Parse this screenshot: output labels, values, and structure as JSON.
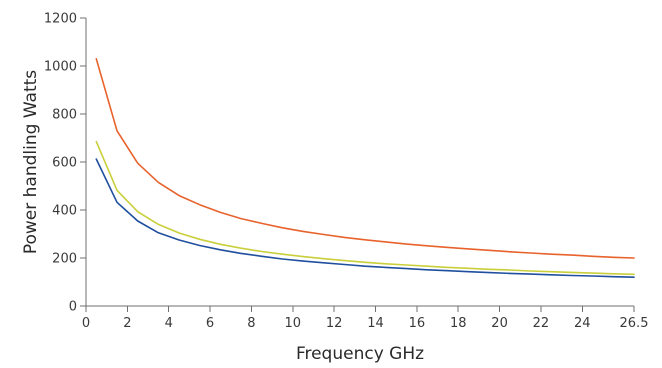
{
  "chart_data": {
    "type": "line",
    "title": "",
    "xlabel": "Frequency GHz",
    "ylabel": "Power handling Watts",
    "xlim": [
      0,
      26.5
    ],
    "ylim": [
      0,
      1200
    ],
    "x_ticks": [
      0,
      2,
      4,
      6,
      8,
      10,
      12,
      14,
      16,
      18,
      20,
      22,
      24,
      26.5
    ],
    "x_tick_labels": [
      "0",
      "2",
      "4",
      "6",
      "8",
      "10",
      "12",
      "14",
      "16",
      "18",
      "20",
      "22",
      "24",
      "26.5"
    ],
    "y_ticks": [
      0,
      200,
      400,
      600,
      800,
      1000,
      1200
    ],
    "y_tick_labels": [
      "0",
      "200",
      "400",
      "600",
      "800",
      "1000",
      "1200"
    ],
    "grid": false,
    "legend": "none",
    "series": [
      {
        "color": "#e8622c",
        "x": [
          0.5,
          1.5,
          2.5,
          3.5,
          4.5,
          5.5,
          6.5,
          7.5,
          8.5,
          9.5,
          10.5,
          11.5,
          12.5,
          13.5,
          14.5,
          15.5,
          16.5,
          17.5,
          18.5,
          19.5,
          20.5,
          21.5,
          22.5,
          23.5,
          24.5,
          25.5,
          26.5
        ],
        "values": [
          1030,
          730,
          595,
          515,
          460,
          422,
          390,
          364,
          344,
          326,
          311,
          298,
          286,
          276,
          267,
          258,
          251,
          244,
          238,
          232,
          226,
          221,
          216,
          212,
          207,
          203,
          200
        ]
      },
      {
        "color": "#c9cf3a",
        "x": [
          0.5,
          1.5,
          2.5,
          3.5,
          4.5,
          5.5,
          6.5,
          7.5,
          8.5,
          9.5,
          10.5,
          11.5,
          12.5,
          13.5,
          14.5,
          15.5,
          16.5,
          17.5,
          18.5,
          19.5,
          20.5,
          21.5,
          22.5,
          23.5,
          24.5,
          25.5,
          26.5
        ],
        "values": [
          685,
          482,
          393,
          340,
          304,
          278,
          257,
          241,
          227,
          216,
          206,
          197,
          189,
          182,
          176,
          171,
          166,
          161,
          157,
          153,
          150,
          146,
          143,
          140,
          137,
          134,
          132
        ]
      },
      {
        "color": "#1f4f9e",
        "x": [
          0.5,
          1.5,
          2.5,
          3.5,
          4.5,
          5.5,
          6.5,
          7.5,
          8.5,
          9.5,
          10.5,
          11.5,
          12.5,
          13.5,
          14.5,
          15.5,
          16.5,
          17.5,
          18.5,
          19.5,
          20.5,
          21.5,
          22.5,
          23.5,
          24.5,
          25.5,
          26.5
        ],
        "values": [
          612,
          432,
          354,
          305,
          275,
          252,
          234,
          219,
          207,
          196,
          187,
          180,
          173,
          166,
          161,
          156,
          151,
          147,
          143,
          139,
          136,
          133,
          130,
          127,
          125,
          122,
          120
        ]
      }
    ]
  }
}
